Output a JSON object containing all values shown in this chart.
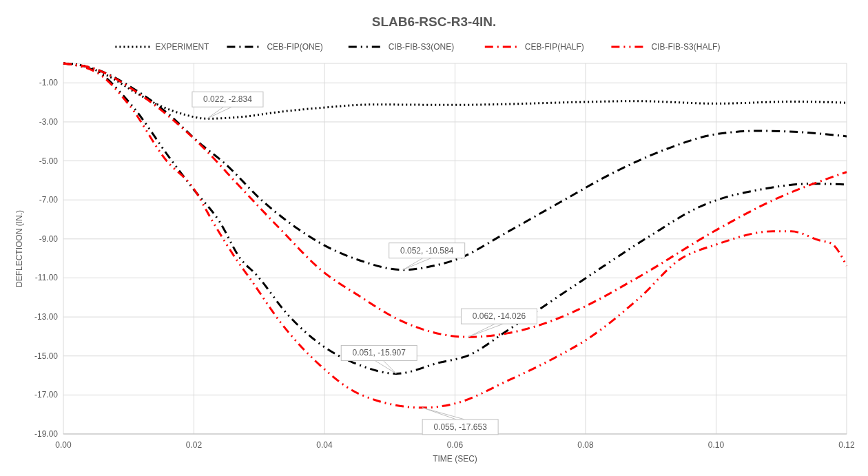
{
  "chart_data": {
    "type": "line",
    "title": "SLAB6-RSC-R3-4IN.",
    "xlabel": "TIME (SEC)",
    "ylabel": "DEFLECTIOON (IN.)",
    "xlim": [
      0,
      0.12
    ],
    "ylim": [
      -19,
      0
    ],
    "xticks": [
      {
        "value": 0,
        "label": "0.00"
      },
      {
        "value": 0.02,
        "label": "0.02"
      },
      {
        "value": 0.04,
        "label": "0.04"
      },
      {
        "value": 0.06,
        "label": "0.06"
      },
      {
        "value": 0.08,
        "label": "0.08"
      },
      {
        "value": 0.1,
        "label": "0.10"
      },
      {
        "value": 0.12,
        "label": "0.12"
      }
    ],
    "yticks": [
      {
        "value": 0,
        "label": null
      },
      {
        "value": -1,
        "label": "-1.00"
      },
      {
        "value": -3,
        "label": "-3.00"
      },
      {
        "value": -5,
        "label": "-5.00"
      },
      {
        "value": -7,
        "label": "-7.00"
      },
      {
        "value": -9,
        "label": "-9.00"
      },
      {
        "value": -11,
        "label": "-11.00"
      },
      {
        "value": -13,
        "label": "-13.00"
      },
      {
        "value": -15,
        "label": "-15.00"
      },
      {
        "value": -17,
        "label": "-17.00"
      },
      {
        "value": -19,
        "label": "-19.00"
      }
    ],
    "grid": true,
    "legend": "top",
    "marker": "none",
    "series": [
      {
        "name": "EXPERIMENT",
        "color": "#000000",
        "line_style": "dotted",
        "x": [
          0,
          0.0024,
          0.0069,
          0.0109,
          0.015,
          0.0183,
          0.022,
          0.0271,
          0.0333,
          0.0394,
          0.0474,
          0.0597,
          0.0798,
          0.0875,
          0.1,
          0.112,
          0.12
        ],
        "values": [
          0,
          -0.07,
          -0.65,
          -1.46,
          -2.2,
          -2.6,
          -2.834,
          -2.75,
          -2.48,
          -2.28,
          -2.11,
          -2.13,
          -1.98,
          -1.93,
          -2.06,
          -1.96,
          -2.02
        ]
      },
      {
        "name": "CEB-FIP(ONE)",
        "color": "#000000",
        "line_style": "dashed",
        "x": [
          0,
          0.005,
          0.0109,
          0.0161,
          0.0207,
          0.0247,
          0.0304,
          0.0373,
          0.0394,
          0.0454,
          0.052,
          0.0576,
          0.06,
          0.068,
          0.0762,
          0.0843,
          0.0925,
          0.1,
          0.1066,
          0.1127,
          0.12
        ],
        "values": [
          0,
          -0.3,
          -1.33,
          -2.6,
          -4.04,
          -5.12,
          -7.02,
          -8.79,
          -9.22,
          -10.1,
          -10.584,
          -10.31,
          -10.08,
          -8.65,
          -7.1,
          -5.6,
          -4.38,
          -3.63,
          -3.46,
          -3.52,
          -3.74
        ]
      },
      {
        "name": "CIB-FIB-S3(ONE)",
        "color": "#000000",
        "line_style": "dashed",
        "x": [
          0,
          0.005,
          0.0101,
          0.0166,
          0.02,
          0.0239,
          0.0271,
          0.0296,
          0.0344,
          0.0393,
          0.0454,
          0.051,
          0.0576,
          0.062,
          0.068,
          0.0798,
          0.09,
          0.0977,
          0.1,
          0.1066,
          0.1147,
          0.12
        ],
        "values": [
          0,
          -0.4,
          -2.0,
          -4.99,
          -6.48,
          -8.1,
          -10.0,
          -10.85,
          -12.89,
          -14.38,
          -15.47,
          -15.907,
          -15.34,
          -14.98,
          -13.7,
          -11.06,
          -8.82,
          -7.32,
          -7.02,
          -6.48,
          -6.17,
          -6.21
        ]
      },
      {
        "name": "CEB-FIP(HALF)",
        "color": "#ff0000",
        "line_style": "dashed",
        "x": [
          0,
          0.005,
          0.0109,
          0.0161,
          0.0214,
          0.0271,
          0.0333,
          0.0394,
          0.0454,
          0.0515,
          0.062,
          0.068,
          0.0762,
          0.0798,
          0.0883,
          0.1,
          0.1087,
          0.12
        ],
        "values": [
          0,
          -0.3,
          -1.4,
          -2.7,
          -4.31,
          -6.34,
          -8.52,
          -10.57,
          -11.94,
          -13.16,
          -14.026,
          -13.84,
          -13.02,
          -12.48,
          -10.92,
          -8.55,
          -7.02,
          -5.57
        ]
      },
      {
        "name": "CIB-FIB-S3(HALF)",
        "color": "#ff0000",
        "line_style": "dashed",
        "x": [
          0,
          0.005,
          0.0101,
          0.0158,
          0.0198,
          0.0231,
          0.0267,
          0.0288,
          0.0333,
          0.0393,
          0.0454,
          0.055,
          0.06,
          0.068,
          0.0762,
          0.0798,
          0.0883,
          0.0945,
          0.1,
          0.1087,
          0.1115,
          0.116,
          0.1176,
          0.12
        ],
        "values": [
          0,
          -0.45,
          -2.14,
          -4.99,
          -6.34,
          -8.24,
          -10.15,
          -11.13,
          -13.29,
          -15.47,
          -16.96,
          -17.653,
          -17.44,
          -16.28,
          -14.93,
          -14.24,
          -12.01,
          -10.04,
          -9.29,
          -8.61,
          -8.61,
          -9.09,
          -9.22,
          -10.38
        ]
      }
    ],
    "annotations": [
      {
        "text": "0.022, -2.834",
        "x": 0.022,
        "y": -2.834
      },
      {
        "text": "0.052, -10.584",
        "x": 0.052,
        "y": -10.584
      },
      {
        "text": "0.062, -14.026",
        "x": 0.062,
        "y": -14.026
      },
      {
        "text": "0.051, -15.907",
        "x": 0.051,
        "y": -15.907
      },
      {
        "text": "0.055, -17.653",
        "x": 0.055,
        "y": -17.653
      }
    ]
  }
}
